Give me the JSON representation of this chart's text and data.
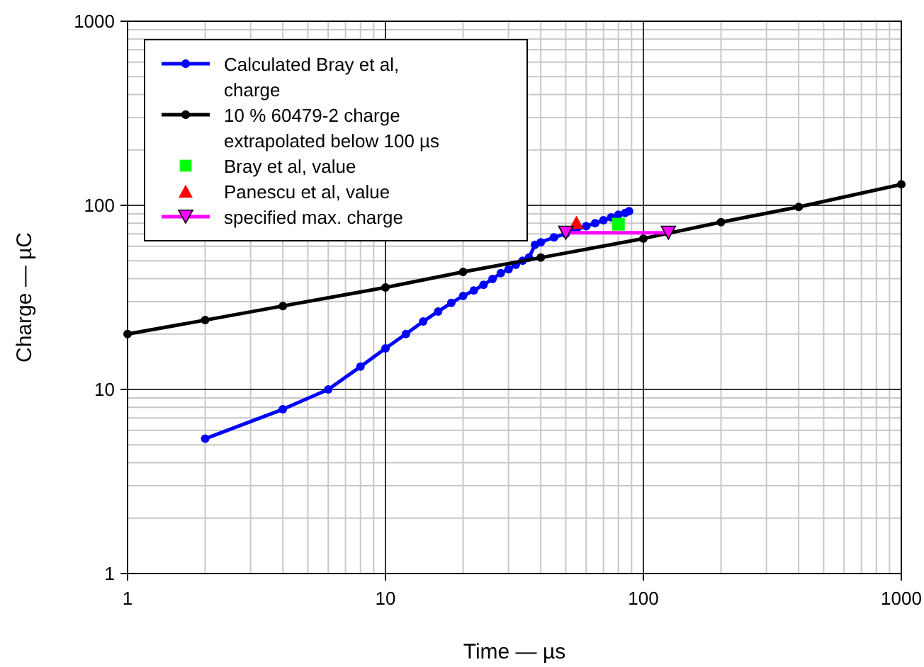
{
  "chart_data": {
    "type": "line",
    "xlabel": "Time — µs",
    "ylabel": "Charge — µC",
    "log": "xy",
    "xlim": [
      1,
      1000
    ],
    "ylim": [
      1,
      1000
    ],
    "xticks": [
      1,
      10,
      100,
      1000
    ],
    "yticks": [
      1,
      10,
      100,
      1000
    ],
    "grid": true,
    "legend": "top left",
    "series": [
      {
        "name": "Calculated Bray et al, charge",
        "color": "#0000ff",
        "marker": "circle",
        "x": [
          2,
          4,
          6,
          8,
          10,
          12,
          14,
          16,
          18,
          20,
          22,
          24,
          26,
          28,
          30,
          32,
          34,
          36,
          38,
          40,
          45,
          50,
          55,
          60,
          65,
          70,
          75,
          80,
          85,
          88
        ],
        "values": [
          5.4,
          7.8,
          10,
          13.3,
          16.7,
          20,
          23.4,
          26.5,
          29.5,
          32.2,
          34.5,
          37,
          39.8,
          42.8,
          45,
          47.5,
          50,
          52,
          61,
          63,
          67,
          70,
          74,
          77,
          80,
          83,
          86,
          89,
          91,
          93
        ]
      },
      {
        "name": "10 % 60479-2 charge extrapolated below 100 µs",
        "color": "#000000",
        "marker": "circle",
        "x": [
          1,
          2,
          4,
          10,
          20,
          40,
          100,
          200,
          400,
          1000
        ],
        "values": [
          20,
          23.8,
          28.4,
          35.8,
          43.5,
          52,
          66,
          81,
          98,
          130
        ]
      },
      {
        "name": "Bray et al, value",
        "type": "scatter",
        "color": "#00ff00",
        "marker": "square",
        "x": [
          80
        ],
        "values": [
          79
        ]
      },
      {
        "name": "Panescu et al, value",
        "type": "scatter",
        "color": "#ff0000",
        "marker": "triangle",
        "x": [
          55
        ],
        "values": [
          81
        ]
      },
      {
        "name": "specified max. charge",
        "color": "#ff00ff",
        "marker": "triangle-down",
        "x": [
          50,
          125
        ],
        "values": [
          71,
          71
        ]
      }
    ]
  }
}
